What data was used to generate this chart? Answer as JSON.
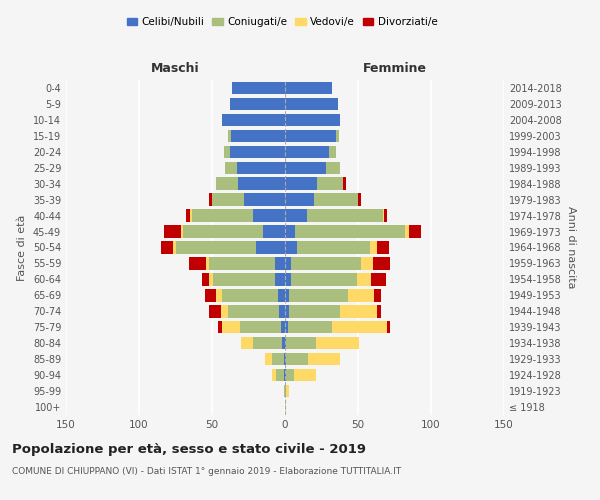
{
  "age_groups": [
    "100+",
    "95-99",
    "90-94",
    "85-89",
    "80-84",
    "75-79",
    "70-74",
    "65-69",
    "60-64",
    "55-59",
    "50-54",
    "45-49",
    "40-44",
    "35-39",
    "30-34",
    "25-29",
    "20-24",
    "15-19",
    "10-14",
    "5-9",
    "0-4"
  ],
  "birth_years": [
    "≤ 1918",
    "1919-1923",
    "1924-1928",
    "1929-1933",
    "1934-1938",
    "1939-1943",
    "1944-1948",
    "1949-1953",
    "1954-1958",
    "1959-1963",
    "1964-1968",
    "1969-1973",
    "1974-1978",
    "1979-1983",
    "1984-1988",
    "1989-1993",
    "1994-1998",
    "1999-2003",
    "2004-2008",
    "2009-2013",
    "2014-2018"
  ],
  "male_celibi": [
    0,
    0,
    1,
    1,
    2,
    3,
    4,
    5,
    7,
    7,
    20,
    15,
    22,
    28,
    32,
    33,
    38,
    37,
    43,
    38,
    36
  ],
  "male_coniugati": [
    0,
    1,
    5,
    8,
    20,
    28,
    35,
    38,
    42,
    45,
    55,
    55,
    42,
    22,
    15,
    8,
    4,
    2,
    0,
    0,
    0
  ],
  "male_vedovi": [
    0,
    0,
    3,
    5,
    8,
    12,
    5,
    4,
    3,
    2,
    2,
    1,
    1,
    0,
    0,
    0,
    0,
    0,
    0,
    0,
    0
  ],
  "male_divorziati": [
    0,
    0,
    0,
    0,
    0,
    3,
    8,
    8,
    5,
    12,
    8,
    12,
    3,
    2,
    0,
    0,
    0,
    0,
    0,
    0,
    0
  ],
  "female_celibi": [
    0,
    0,
    1,
    1,
    1,
    2,
    3,
    3,
    4,
    4,
    8,
    7,
    15,
    20,
    22,
    28,
    30,
    35,
    38,
    36,
    32
  ],
  "female_coniugati": [
    0,
    1,
    5,
    15,
    20,
    30,
    35,
    40,
    45,
    48,
    50,
    75,
    52,
    30,
    18,
    10,
    5,
    2,
    0,
    0,
    0
  ],
  "female_vedovi": [
    1,
    2,
    15,
    22,
    30,
    38,
    25,
    18,
    10,
    8,
    5,
    3,
    1,
    0,
    0,
    0,
    0,
    0,
    0,
    0,
    0
  ],
  "female_divorziati": [
    0,
    0,
    0,
    0,
    0,
    2,
    3,
    5,
    10,
    12,
    8,
    8,
    2,
    2,
    2,
    0,
    0,
    0,
    0,
    0,
    0
  ],
  "colors": {
    "celibi": "#4472C4",
    "coniugati": "#AABF7E",
    "vedovi": "#FFD966",
    "divorziati": "#C00000"
  },
  "title": "Popolazione per età, sesso e stato civile - 2019",
  "subtitle": "COMUNE DI CHIUPPANO (VI) - Dati ISTAT 1° gennaio 2019 - Elaborazione TUTTITALIA.IT",
  "xlabel_left": "Maschi",
  "xlabel_right": "Femmine",
  "ylabel_left": "Fasce di età",
  "ylabel_right": "Anni di nascita",
  "xlim": 150,
  "background_color": "#f5f5f5"
}
